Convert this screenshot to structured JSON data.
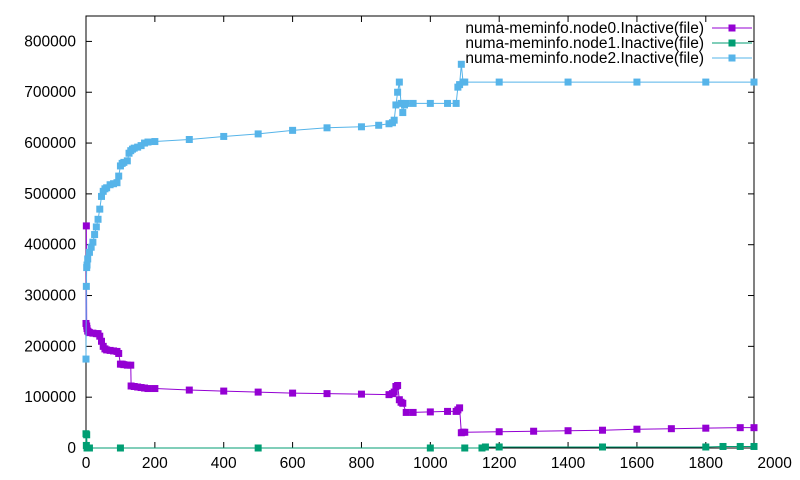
{
  "chart_data": {
    "type": "line",
    "title": "",
    "xlabel": "",
    "ylabel": "",
    "xlim": [
      0,
      1940
    ],
    "ylim": [
      0,
      850000
    ],
    "xticks": [
      0,
      200,
      400,
      600,
      800,
      1000,
      1200,
      1400,
      1600,
      1800,
      2000
    ],
    "yticks": [
      0,
      100000,
      200000,
      300000,
      400000,
      500000,
      600000,
      700000,
      800000
    ],
    "xtick_labels": [
      "0",
      "200",
      "400",
      "600",
      "800",
      "1000",
      "1200",
      "1400",
      "1600",
      "1800",
      "2000"
    ],
    "ytick_labels": [
      "0",
      "100000",
      "200000",
      "300000",
      "400000",
      "500000",
      "600000",
      "700000",
      "800000"
    ],
    "grid": false,
    "legend_position": "top-right",
    "series": [
      {
        "name": "numa-meminfo.node0.Inactive(file)",
        "color": "#9400d3",
        "x": [
          0,
          1,
          2,
          3,
          5,
          8,
          10,
          20,
          30,
          35,
          40,
          45,
          50,
          55,
          60,
          70,
          80,
          90,
          95,
          100,
          105,
          110,
          120,
          130,
          131,
          140,
          150,
          160,
          170,
          180,
          200,
          300,
          400,
          500,
          600,
          700,
          800,
          880,
          890,
          895,
          900,
          905,
          910,
          915,
          920,
          930,
          950,
          1000,
          1050,
          1075,
          1080,
          1085,
          1090,
          1095,
          1100,
          1200,
          1300,
          1400,
          1500,
          1600,
          1700,
          1800,
          1900,
          1940
        ],
        "values": [
          245000,
          437000,
          240000,
          235000,
          230000,
          228000,
          227000,
          226000,
          225000,
          225000,
          220000,
          210000,
          200000,
          195000,
          193000,
          192000,
          191000,
          190000,
          186000,
          165000,
          165000,
          164000,
          163000,
          163000,
          122000,
          121000,
          120000,
          119000,
          118000,
          117000,
          117000,
          114000,
          112000,
          110000,
          108000,
          107000,
          106000,
          105000,
          107000,
          110000,
          121000,
          123000,
          95000,
          90000,
          88000,
          70000,
          70000,
          71000,
          72000,
          72000,
          75000,
          79000,
          30000,
          31000,
          31000,
          32000,
          33000,
          34000,
          35000,
          37000,
          38000,
          39000,
          40000,
          40000
        ]
      },
      {
        "name": "numa-meminfo.node1.Inactive(file)",
        "color": "#009e73",
        "x": [
          0,
          1,
          2,
          3,
          10,
          100,
          500,
          1000,
          1100,
          1150,
          1160,
          1200,
          1500,
          1800,
          1850,
          1900,
          1940
        ],
        "values": [
          28000,
          5000,
          26000,
          0,
          0,
          0,
          0,
          0,
          0,
          0,
          2000,
          2000,
          2000,
          2000,
          3000,
          3000,
          3000
        ]
      },
      {
        "name": "numa-meminfo.node2.Inactive(file)",
        "color": "#56b4e9",
        "x": [
          0,
          1,
          2,
          3,
          5,
          10,
          15,
          20,
          25,
          30,
          35,
          40,
          45,
          50,
          55,
          60,
          70,
          80,
          90,
          95,
          100,
          105,
          110,
          120,
          125,
          130,
          135,
          140,
          150,
          160,
          170,
          180,
          200,
          300,
          400,
          500,
          600,
          700,
          800,
          850,
          880,
          890,
          895,
          900,
          905,
          910,
          915,
          920,
          925,
          930,
          950,
          1000,
          1050,
          1075,
          1080,
          1085,
          1090,
          1095,
          1100,
          1200,
          1400,
          1600,
          1800,
          1940
        ],
        "values": [
          175000,
          318000,
          355000,
          360000,
          372000,
          385000,
          395000,
          405000,
          420000,
          435000,
          450000,
          470000,
          495000,
          505000,
          510000,
          512000,
          518000,
          520000,
          522000,
          535000,
          555000,
          560000,
          562000,
          565000,
          580000,
          585000,
          588000,
          590000,
          592000,
          595000,
          600000,
          602000,
          603000,
          607000,
          613000,
          618000,
          625000,
          630000,
          632000,
          635000,
          638000,
          640000,
          645000,
          675000,
          700000,
          720000,
          678000,
          660000,
          675000,
          678000,
          678000,
          678000,
          678000,
          678000,
          710000,
          715000,
          755000,
          720000,
          720000,
          720000,
          720000,
          720000,
          720000,
          720000
        ]
      }
    ]
  }
}
